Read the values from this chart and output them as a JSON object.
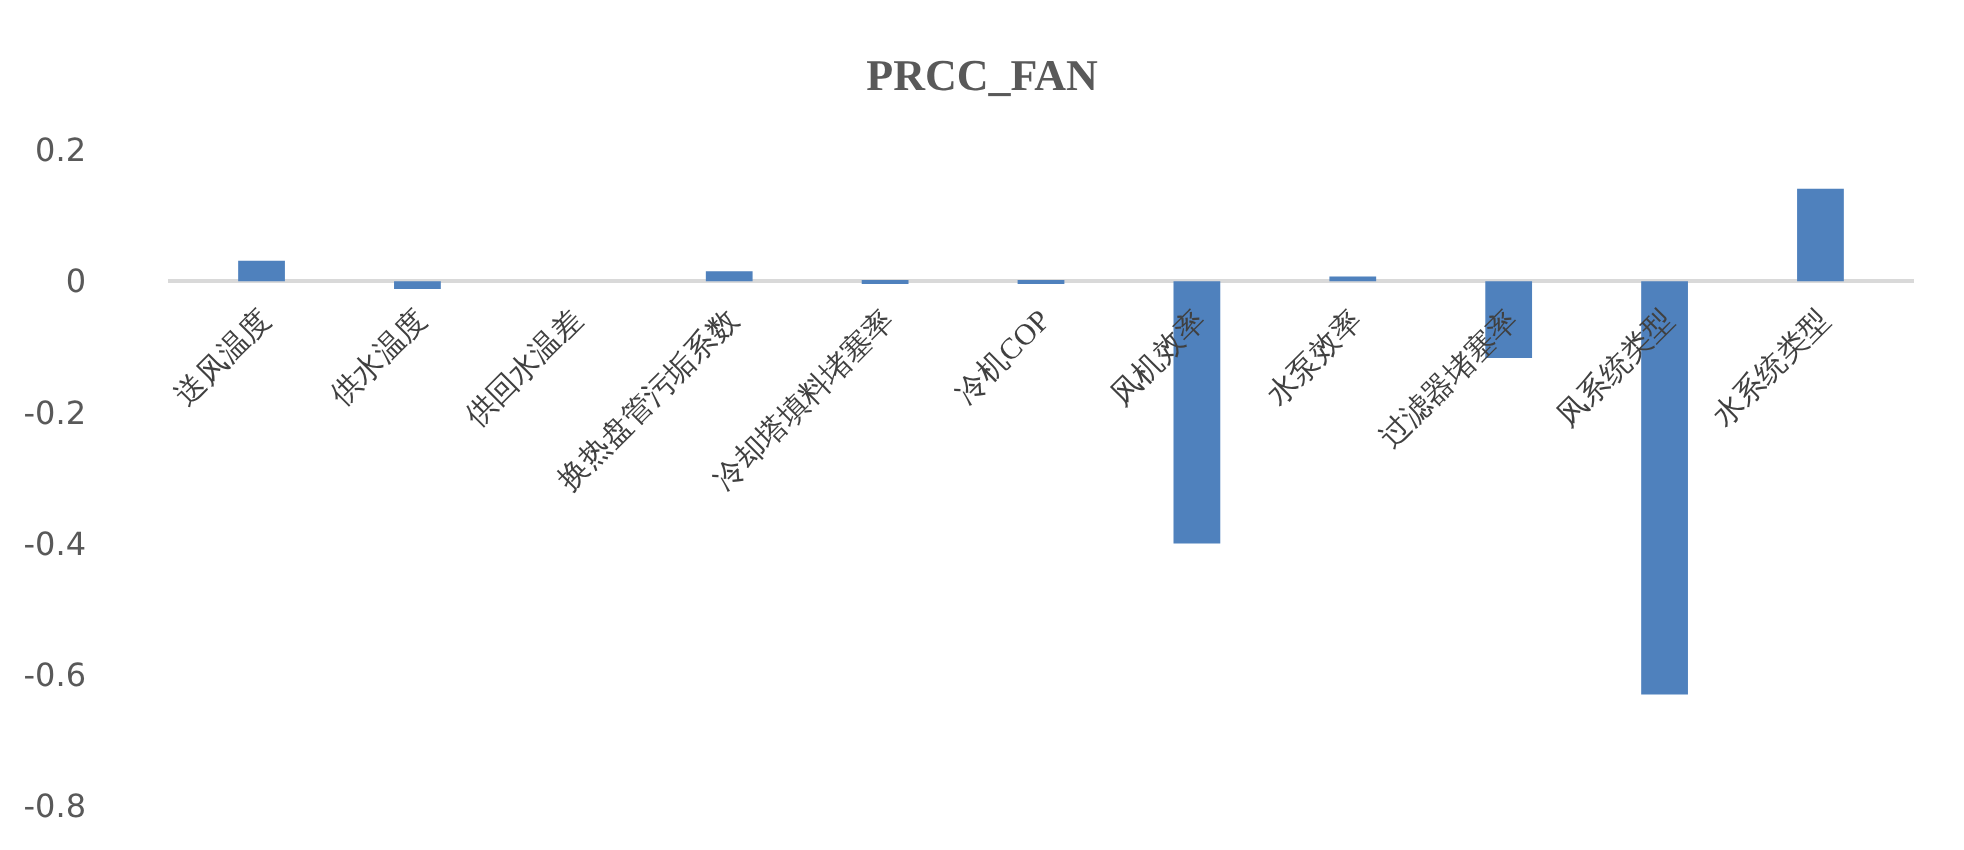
{
  "chart_data": {
    "type": "bar",
    "title": "PRCC_FAN",
    "categories": [
      "送风温度",
      "供水温度",
      "供回水温差",
      "换热盘管污垢系数",
      "冷却塔填料堵塞率",
      "冷机COP",
      "风机效率",
      "水泵效率",
      "过滤器堵塞率",
      "风系统类型",
      "水系统类型"
    ],
    "values": [
      0.031,
      -0.012,
      0,
      0.015,
      -0.003,
      -0.003,
      -0.4,
      0.007,
      -0.117,
      -0.63,
      0.141
    ],
    "color": "#4f81bd",
    "ylim": [
      -0.8,
      0.2
    ],
    "yticks": [
      0.2,
      0,
      -0.2,
      -0.4,
      -0.6,
      -0.8
    ],
    "grid": false
  }
}
